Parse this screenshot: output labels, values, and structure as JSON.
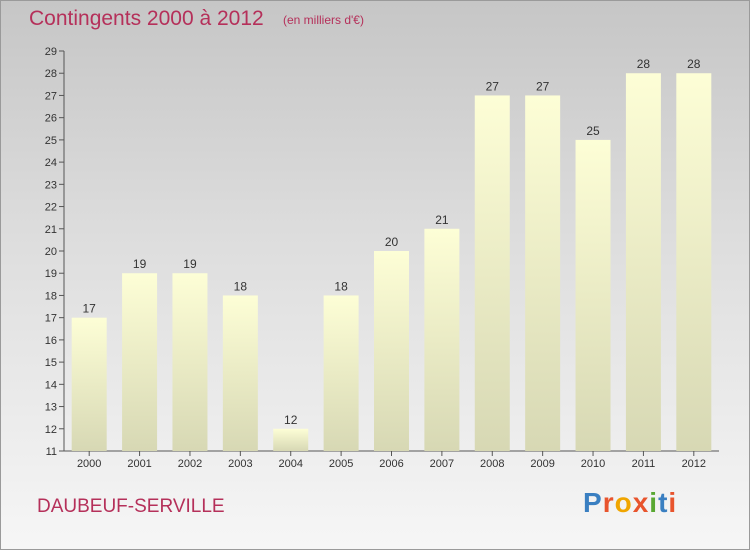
{
  "title": "Contingents 2000 à 2012",
  "unit_note": "(en milliers d'€)",
  "commune": "DAUBEUF-SERVILLE",
  "brand": {
    "text": "Proxiti",
    "letter_colors": [
      "#3a7fc1",
      "#e8542d",
      "#f0a500",
      "#e8542d",
      "#59a832",
      "#3a7fc1",
      "#e8542d"
    ]
  },
  "chart_data": {
    "type": "bar",
    "categories": [
      "2000",
      "2001",
      "2002",
      "2003",
      "2004",
      "2005",
      "2006",
      "2007",
      "2008",
      "2009",
      "2010",
      "2011",
      "2012"
    ],
    "values": [
      17,
      19,
      19,
      18,
      12,
      18,
      20,
      21,
      27,
      27,
      25,
      28,
      28
    ],
    "ylim": [
      11,
      29
    ],
    "yticks": [
      11,
      12,
      13,
      14,
      15,
      16,
      17,
      18,
      19,
      20,
      21,
      22,
      23,
      24,
      25,
      26,
      27,
      28,
      29
    ],
    "grid": false,
    "bar_color_top": "#fdfed6",
    "bar_color_bottom": "#d7d8b4",
    "title": "Contingents 2000 à 2012",
    "xlabel": "",
    "ylabel": ""
  }
}
